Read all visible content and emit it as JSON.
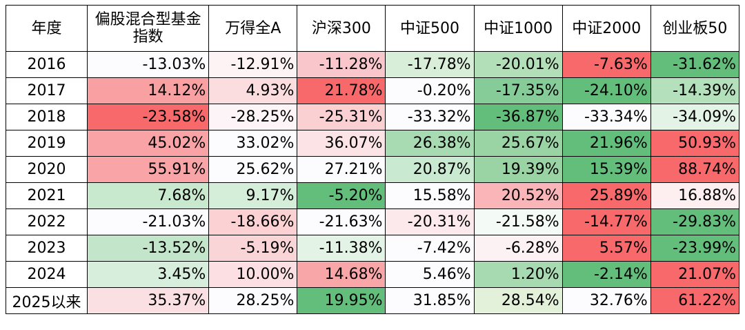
{
  "table": {
    "headers": [
      "年度",
      "偏股混合型基金指数",
      "万得全A",
      "沪深300",
      "中证500",
      "中证1000",
      "中证2000",
      "创业板50"
    ],
    "rows": [
      {
        "year": "2016",
        "cells": [
          {
            "text": "-13.03%",
            "color": "#fcfcff"
          },
          {
            "text": "-12.91%",
            "color": "#fdf3f5"
          },
          {
            "text": "-11.28%",
            "color": "#f9c7cb"
          },
          {
            "text": "-17.78%",
            "color": "#d8eed9"
          },
          {
            "text": "-20.01%",
            "color": "#b3dfb8"
          },
          {
            "text": "-7.63%",
            "color": "#f8696b"
          },
          {
            "text": "-31.62%",
            "color": "#63be7b"
          }
        ]
      },
      {
        "year": "2017",
        "cells": [
          {
            "text": "14.12%",
            "color": "#f9a0a3"
          },
          {
            "text": "4.93%",
            "color": "#fbdde0"
          },
          {
            "text": "21.78%",
            "color": "#f8696b"
          },
          {
            "text": "-0.20%",
            "color": "#fcfcff"
          },
          {
            "text": "-17.35%",
            "color": "#86cc98"
          },
          {
            "text": "-24.10%",
            "color": "#63be7b"
          },
          {
            "text": "-14.39%",
            "color": "#b4e0bb"
          }
        ]
      },
      {
        "year": "2018",
        "cells": [
          {
            "text": "-23.58%",
            "color": "#f8696b"
          },
          {
            "text": "-28.25%",
            "color": "#fcf4f6"
          },
          {
            "text": "-25.31%",
            "color": "#fad0d3"
          },
          {
            "text": "-33.32%",
            "color": "#fcfcff"
          },
          {
            "text": "-36.87%",
            "color": "#63be7b"
          },
          {
            "text": "-33.34%",
            "color": "#fcfcff"
          },
          {
            "text": "-34.09%",
            "color": "#e3f3e6"
          }
        ]
      },
      {
        "year": "2019",
        "cells": [
          {
            "text": "45.02%",
            "color": "#f9a3a6"
          },
          {
            "text": "33.02%",
            "color": "#fcfcff"
          },
          {
            "text": "36.07%",
            "color": "#fbe3e6"
          },
          {
            "text": "26.38%",
            "color": "#a8dbb1"
          },
          {
            "text": "25.67%",
            "color": "#9ad4a5"
          },
          {
            "text": "21.96%",
            "color": "#63be7b"
          },
          {
            "text": "50.93%",
            "color": "#f8696b"
          }
        ]
      },
      {
        "year": "2020",
        "cells": [
          {
            "text": "55.91%",
            "color": "#f9a5a8"
          },
          {
            "text": "25.62%",
            "color": "#fcfcff"
          },
          {
            "text": "27.21%",
            "color": "#fcfcff"
          },
          {
            "text": "20.87%",
            "color": "#c9e9d0"
          },
          {
            "text": "19.39%",
            "color": "#9ad4a5"
          },
          {
            "text": "15.39%",
            "color": "#63be7b"
          },
          {
            "text": "88.74%",
            "color": "#f8696b"
          }
        ]
      },
      {
        "year": "2021",
        "cells": [
          {
            "text": "7.68%",
            "color": "#c9e9ce"
          },
          {
            "text": "9.17%",
            "color": "#d4eed9"
          },
          {
            "text": "-5.20%",
            "color": "#63be7b"
          },
          {
            "text": "15.58%",
            "color": "#fcfcff"
          },
          {
            "text": "20.52%",
            "color": "#fab5b8"
          },
          {
            "text": "25.89%",
            "color": "#f8696b"
          },
          {
            "text": "16.88%",
            "color": "#fdeef0"
          }
        ]
      },
      {
        "year": "2022",
        "cells": [
          {
            "text": "-21.03%",
            "color": "#fcfcff"
          },
          {
            "text": "-18.66%",
            "color": "#fbd1d4"
          },
          {
            "text": "-21.63%",
            "color": "#fcfcff"
          },
          {
            "text": "-20.31%",
            "color": "#fce9ec"
          },
          {
            "text": "-21.58%",
            "color": "#f4fbf6"
          },
          {
            "text": "-14.77%",
            "color": "#f8696b"
          },
          {
            "text": "-29.83%",
            "color": "#63be7b"
          }
        ]
      },
      {
        "year": "2023",
        "cells": [
          {
            "text": "-13.52%",
            "color": "#c3e6ca"
          },
          {
            "text": "-5.19%",
            "color": "#fad5d8"
          },
          {
            "text": "-11.38%",
            "color": "#e3f3e6"
          },
          {
            "text": "-7.42%",
            "color": "#fcfcff"
          },
          {
            "text": "-6.28%",
            "color": "#fcf1f3"
          },
          {
            "text": "5.57%",
            "color": "#f8696b"
          },
          {
            "text": "-23.99%",
            "color": "#63be7b"
          }
        ]
      },
      {
        "year": "2024",
        "cells": [
          {
            "text": "3.45%",
            "color": "#d8eedd"
          },
          {
            "text": "10.00%",
            "color": "#fbdfe2"
          },
          {
            "text": "14.68%",
            "color": "#f9a6a9"
          },
          {
            "text": "5.46%",
            "color": "#fcfcff"
          },
          {
            "text": "1.20%",
            "color": "#a8dab2"
          },
          {
            "text": "-2.14%",
            "color": "#63be7b"
          },
          {
            "text": "21.07%",
            "color": "#f8696b"
          }
        ]
      },
      {
        "year": "2025以来",
        "cells": [
          {
            "text": "35.37%",
            "color": "#fbe0e3"
          },
          {
            "text": "28.25%",
            "color": "#fcfcff"
          },
          {
            "text": "19.95%",
            "color": "#63be7b"
          },
          {
            "text": "31.85%",
            "color": "#fcfcff"
          },
          {
            "text": "28.54%",
            "color": "#e3f1da"
          },
          {
            "text": "32.76%",
            "color": "#fcfcff"
          },
          {
            "text": "61.22%",
            "color": "#f8696b"
          }
        ]
      }
    ]
  }
}
